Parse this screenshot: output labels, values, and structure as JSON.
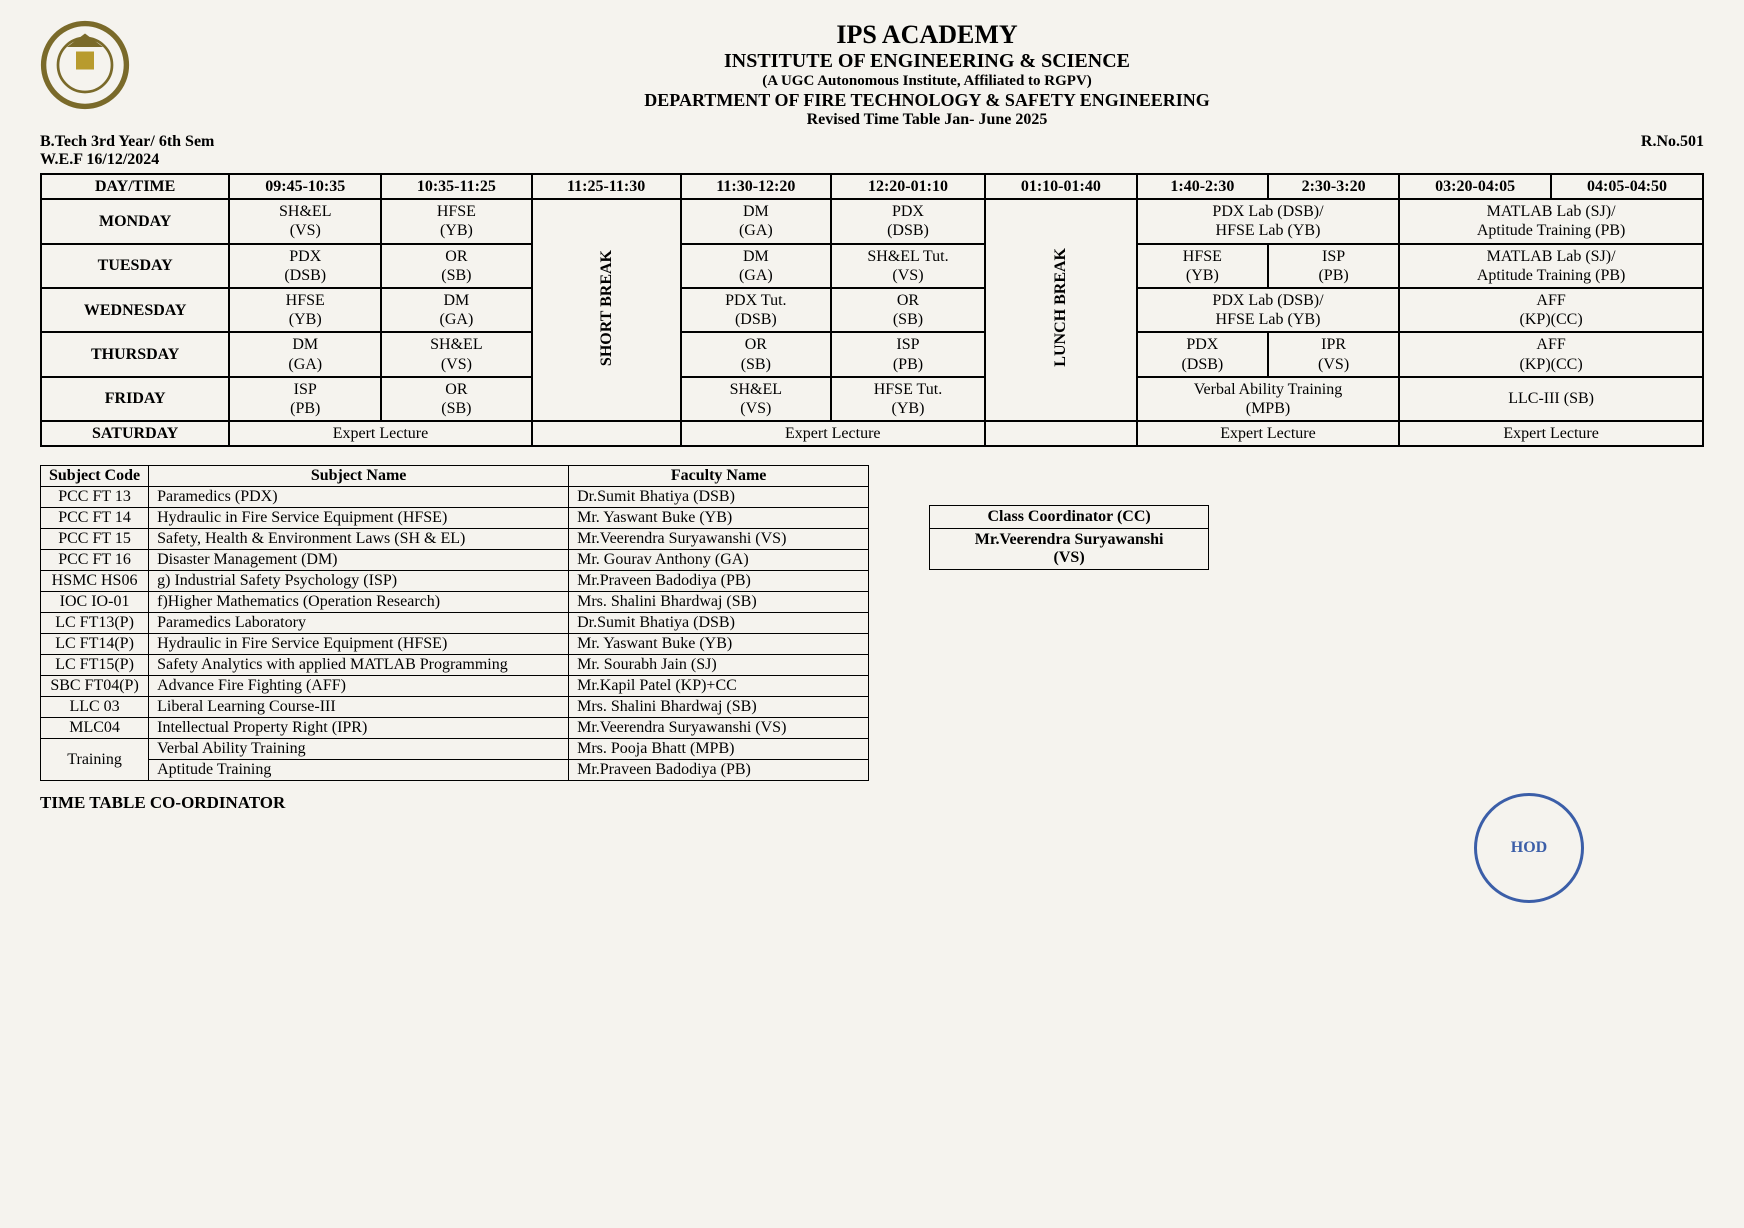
{
  "header": {
    "institution": "IPS ACADEMY",
    "institute": "INSTITUTE OF ENGINEERING & SCIENCE",
    "affiliation": "(A UGC Autonomous Institute, Affiliated to RGPV)",
    "department": "DEPARTMENT OF FIRE TECHNOLOGY & SAFETY ENGINEERING",
    "revised": "Revised Time Table Jan- June 2025",
    "programme": "B.Tech 3rd Year/ 6th Sem",
    "wef": "W.E.F 16/12/2024",
    "rno": "R.No.501"
  },
  "timetable": {
    "header": [
      "DAY/TIME",
      "09:45-10:35",
      "10:35-11:25",
      "11:25-11:30",
      "11:30-12:20",
      "12:20-01:10",
      "01:10-01:40",
      "1:40-2:30",
      "2:30-3:20",
      "03:20-04:05",
      "04:05-04:50"
    ],
    "short_break": "SHORT BREAK",
    "lunch_break": "LUNCH BREAK",
    "days": {
      "mon": {
        "label": "MONDAY",
        "c1": "SH&EL\n(VS)",
        "c2": "HFSE\n(YB)",
        "c4": "DM\n(GA)",
        "c5": "PDX\n(DSB)",
        "c78": "PDX Lab (DSB)/\nHFSE Lab (YB)",
        "c910": "MATLAB  Lab (SJ)/\nAptitude Training (PB)"
      },
      "tue": {
        "label": "TUESDAY",
        "c1": "PDX\n(DSB)",
        "c2": "OR\n(SB)",
        "c4": "DM\n(GA)",
        "c5": "SH&EL Tut.\n(VS)",
        "c7": "HFSE\n(YB)",
        "c8": "ISP\n(PB)",
        "c910": "MATLAB  Lab (SJ)/\nAptitude Training (PB)"
      },
      "wed": {
        "label": "WEDNESDAY",
        "c1": "HFSE\n(YB)",
        "c2": "DM\n(GA)",
        "c4": "PDX Tut.\n(DSB)",
        "c5": "OR\n(SB)",
        "c78": "PDX Lab (DSB)/\nHFSE Lab (YB)",
        "c910": "AFF\n(KP)(CC)"
      },
      "thu": {
        "label": "THURSDAY",
        "c1": "DM\n(GA)",
        "c2": "SH&EL\n(VS)",
        "c4": "OR\n(SB)",
        "c5": "ISP\n(PB)",
        "c7": "PDX\n(DSB)",
        "c8": "IPR\n(VS)",
        "c910": "AFF\n(KP)(CC)"
      },
      "fri": {
        "label": "FRIDAY",
        "c1": "ISP\n(PB)",
        "c2": "OR\n(SB)",
        "c4": "SH&EL\n(VS)",
        "c5": "HFSE Tut.\n(YB)",
        "c78": "Verbal Ability Training\n(MPB)",
        "c910": "LLC-III (SB)"
      },
      "sat": {
        "label": "SATURDAY",
        "c12": "Expert Lecture",
        "c45": "Expert Lecture",
        "c78": "Expert Lecture",
        "c910": "Expert Lecture"
      }
    }
  },
  "subjects": {
    "headers": [
      "Subject Code",
      "Subject Name",
      "Faculty Name"
    ],
    "rows": [
      [
        "PCC FT 13",
        "Paramedics (PDX)",
        "Dr.Sumit Bhatiya (DSB)"
      ],
      [
        "PCC FT 14",
        "Hydraulic in Fire Service Equipment (HFSE)",
        "Mr. Yaswant Buke (YB)"
      ],
      [
        "PCC FT 15",
        "Safety, Health & Environment Laws (SH & EL)",
        "Mr.Veerendra Suryawanshi (VS)"
      ],
      [
        "PCC FT 16",
        "Disaster Management (DM)",
        "Mr. Gourav Anthony (GA)"
      ],
      [
        "HSMC HS06",
        "g) Industrial Safety Psychology (ISP)",
        "Mr.Praveen Badodiya (PB)"
      ],
      [
        "IOC IO-01",
        "f)Higher Mathematics (Operation Research)",
        "Mrs. Shalini Bhardwaj (SB)"
      ],
      [
        "LC FT13(P)",
        "Paramedics Laboratory",
        "Dr.Sumit Bhatiya (DSB)"
      ],
      [
        "LC FT14(P)",
        "Hydraulic in Fire Service Equipment (HFSE)",
        "Mr. Yaswant Buke (YB)"
      ],
      [
        "LC FT15(P)",
        "Safety Analytics with applied MATLAB Programming",
        "Mr. Sourabh Jain (SJ)"
      ],
      [
        "SBC FT04(P)",
        "Advance Fire Fighting (AFF)",
        "Mr.Kapil Patel (KP)+CC"
      ],
      [
        "LLC 03",
        "Liberal Learning Course-III",
        "Mrs. Shalini Bhardwaj (SB)"
      ],
      [
        "MLC04",
        "Intellectual Property Right (IPR)",
        "Mr.Veerendra Suryawanshi (VS)"
      ]
    ],
    "training_label": "Training",
    "training_rows": [
      [
        "Verbal Ability Training",
        "Mrs. Pooja Bhatt (MPB)"
      ],
      [
        "Aptitude Training",
        "Mr.Praveen Badodiya (PB)"
      ]
    ]
  },
  "cc": {
    "title": "Class Coordinator (CC)",
    "name": "Mr.Veerendra Suryawanshi\n(VS)"
  },
  "signatures": {
    "left": "TIME TABLE CO-ORDINATOR",
    "hod": "HOD"
  },
  "colors": {
    "background": "#f5f3ee",
    "border": "#000000",
    "stamp": "#3b5ea8"
  }
}
